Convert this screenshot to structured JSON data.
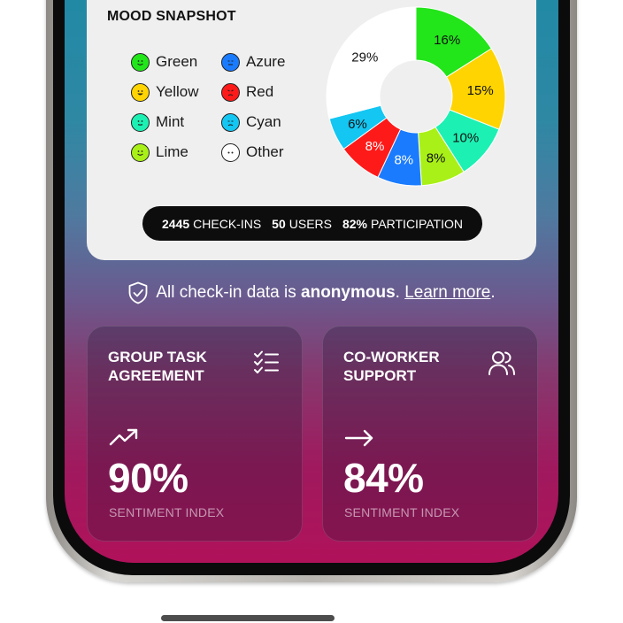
{
  "mood_card": {
    "title": "MOOD SNAPSHOT",
    "legend": [
      {
        "label": "Green",
        "color": "#22e51a",
        "face": "smile"
      },
      {
        "label": "Yellow",
        "color": "#ffd400",
        "face": "happy"
      },
      {
        "label": "Mint",
        "color": "#1df0b3",
        "face": "neutral"
      },
      {
        "label": "Lime",
        "color": "#a9f018",
        "face": "smile"
      },
      {
        "label": "Azure",
        "color": "#1a7bff",
        "face": "flat"
      },
      {
        "label": "Red",
        "color": "#ff1a1a",
        "face": "angry"
      },
      {
        "label": "Cyan",
        "color": "#14c6f2",
        "face": "sad"
      },
      {
        "label": "Other",
        "color": "#ffffff",
        "face": "dots"
      }
    ],
    "stats": {
      "checkins_value": "2445",
      "checkins_label": "CHECK-INS",
      "users_value": "50",
      "users_label": "USERS",
      "participation_value": "82%",
      "participation_label": "PARTICIPATION"
    }
  },
  "chart_data": {
    "type": "pie",
    "donut": true,
    "slices": [
      {
        "label": "Green",
        "value": 16,
        "text": "16%",
        "color": "#22e51a"
      },
      {
        "label": "Yellow",
        "value": 15,
        "text": "15%",
        "color": "#ffd400"
      },
      {
        "label": "Mint",
        "value": 10,
        "text": "10%",
        "color": "#1df0b3"
      },
      {
        "label": "Lime",
        "value": 8,
        "text": "8%",
        "color": "#a9f018"
      },
      {
        "label": "Azure",
        "value": 8,
        "text": "8%",
        "color": "#1a7bff"
      },
      {
        "label": "Red",
        "value": 8,
        "text": "8%",
        "color": "#ff1a1a"
      },
      {
        "label": "Cyan",
        "value": 6,
        "text": "6%",
        "color": "#14c6f2"
      },
      {
        "label": "Other",
        "value": 29,
        "text": "29%",
        "color": "#ffffff"
      }
    ]
  },
  "privacy": {
    "prefix": "All check-in data is",
    "bold": "anonymous",
    "period": ".",
    "link": "Learn more",
    "suffix": "."
  },
  "tiles": [
    {
      "title": "GROUP TASK AGREEMENT",
      "icon": "checklist-icon",
      "trend": "trending-up-icon",
      "value": "90%",
      "sub": "SENTIMENT INDEX"
    },
    {
      "title": "CO-WORKER SUPPORT",
      "icon": "users-icon",
      "trend": "arrow-right-icon",
      "value": "84%",
      "sub": "SENTIMENT INDEX"
    }
  ]
}
